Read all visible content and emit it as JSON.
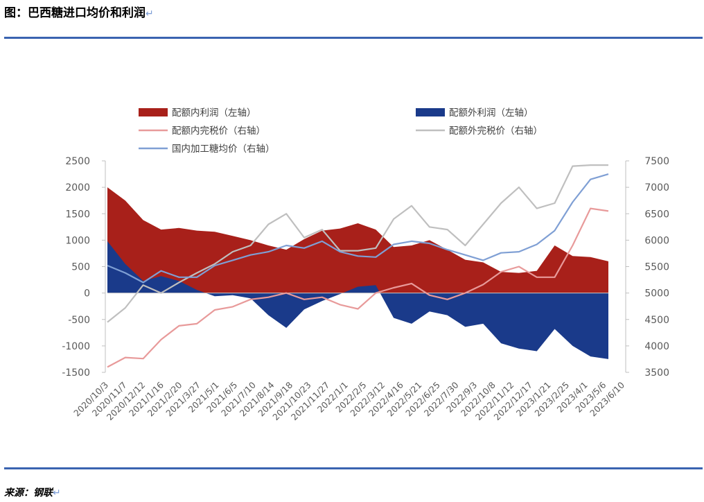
{
  "header": {
    "title": "图：巴西糖进口均价和利润",
    "para_mark": "↵"
  },
  "footer": {
    "source": "来源：钢联",
    "para_mark": "↵"
  },
  "chart_data": {
    "type": "area+line",
    "title": "图：巴西糖进口均价和利润",
    "x_dates": [
      "2020/10/3",
      "2020/11/7",
      "2020/12/12",
      "2021/1/16",
      "2021/2/20",
      "2021/3/27",
      "2021/5/1",
      "2021/6/5",
      "2021/7/10",
      "2021/8/14",
      "2021/9/18",
      "2021/10/23",
      "2021/11/27",
      "2022/1/1",
      "2022/2/5",
      "2022/3/12",
      "2022/4/16",
      "2022/5/21",
      "2022/6/25",
      "2022/7/30",
      "2022/9/3",
      "2022/10/8",
      "2022/11/12",
      "2022/12/17",
      "2023/1/21",
      "2023/2/25",
      "2023/4/1",
      "2023/5/6",
      "2023/6/10"
    ],
    "y_left": {
      "min": -1500,
      "max": 2500,
      "ticks": [
        "2500",
        "2000",
        "1500",
        "1000",
        "500",
        "0",
        "-500",
        "-1000",
        "-1500"
      ]
    },
    "y_right": {
      "min": 3500,
      "max": 7500,
      "ticks": [
        "7500",
        "7000",
        "6500",
        "6000",
        "5500",
        "5000",
        "4500",
        "4000",
        "3500"
      ]
    },
    "legend": {
      "placement": "top",
      "items": [
        {
          "name": "配额内利润（左轴）",
          "kind": "area"
        },
        {
          "name": "配额外利润（左轴）",
          "kind": "area"
        },
        {
          "name": "配额内完税价（右轴）",
          "kind": "line"
        },
        {
          "name": "配额外完税价（右轴）",
          "kind": "line"
        },
        {
          "name": "国内加工糖均价（右轴）",
          "kind": "line"
        }
      ]
    },
    "series": [
      {
        "name": "配额内利润（左轴）",
        "axis": "left",
        "kind": "area",
        "color": "#a8201a",
        "values": [
          2000,
          1750,
          1380,
          1200,
          1230,
          1180,
          1160,
          1080,
          1000,
          900,
          820,
          1020,
          1180,
          1220,
          1320,
          1200,
          870,
          900,
          1000,
          820,
          630,
          580,
          400,
          380,
          420,
          900,
          700,
          680,
          600
        ]
      },
      {
        "name": "配额外利润（左轴）",
        "axis": "left",
        "kind": "area",
        "color": "#1a3a8a",
        "values": [
          980,
          550,
          230,
          320,
          230,
          60,
          -60,
          -40,
          -100,
          -420,
          -660,
          -310,
          -150,
          -20,
          120,
          150,
          -470,
          -580,
          -350,
          -420,
          -640,
          -580,
          -950,
          -1050,
          -1100,
          -680,
          -1000,
          -1200,
          -1250
        ]
      },
      {
        "name": "配额内完税价（右轴）",
        "axis": "right",
        "kind": "line",
        "color": "#e89a9a",
        "values": [
          3600,
          3780,
          3760,
          4120,
          4380,
          4420,
          4680,
          4740,
          4880,
          4920,
          5000,
          4880,
          4920,
          4780,
          4700,
          5000,
          5100,
          5180,
          4960,
          4880,
          5000,
          5160,
          5400,
          5500,
          5300,
          5300,
          5900,
          6600,
          6550
        ]
      },
      {
        "name": "配额外完税价（右轴）",
        "axis": "right",
        "kind": "line",
        "color": "#bfbfbf",
        "values": [
          4450,
          4720,
          5150,
          5000,
          5200,
          5380,
          5550,
          5780,
          5900,
          6300,
          6500,
          6050,
          6200,
          5800,
          5800,
          5850,
          6400,
          6650,
          6250,
          6200,
          5900,
          6300,
          6700,
          7000,
          6600,
          6700,
          7400,
          7420,
          7420
        ]
      },
      {
        "name": "国内加工糖均价（右轴）",
        "axis": "right",
        "kind": "line",
        "color": "#7f9fd4",
        "values": [
          5520,
          5380,
          5200,
          5420,
          5300,
          5300,
          5520,
          5620,
          5720,
          5780,
          5900,
          5850,
          5980,
          5780,
          5700,
          5680,
          5920,
          5980,
          5940,
          5820,
          5720,
          5620,
          5760,
          5780,
          5920,
          6180,
          6720,
          7150,
          7250
        ]
      }
    ]
  }
}
